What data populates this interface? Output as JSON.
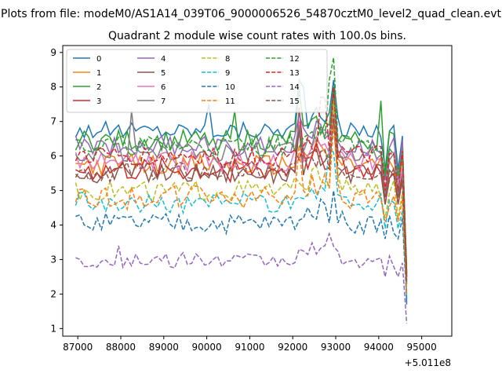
{
  "suptitle": "Plots from file: modeM0/AS1A14_039T06_9000006526_54870cztM0_level2_quad_clean.evt",
  "chart_data": {
    "type": "line",
    "title": "Quadrant 2 module wise count rates with 100.0s bins.",
    "xlabel": "",
    "ylabel": "",
    "offset_label": "+5.011e8",
    "xlim": [
      86650,
      95700
    ],
    "ylim": [
      0.78,
      9.2
    ],
    "xticks": [
      87000,
      88000,
      89000,
      90000,
      91000,
      92000,
      93000,
      94000,
      95000
    ],
    "yticks": [
      1,
      2,
      3,
      4,
      5,
      6,
      7,
      8,
      9
    ],
    "x_start": 86950,
    "x_step": 100,
    "n_points": 78,
    "legend_location": "top-left",
    "series": [
      {
        "name": "0",
        "color": "#1f77b4",
        "style": "solid",
        "base": 6.75,
        "noise": 0.25,
        "dip": 5.6,
        "end": 1.7,
        "spikes": [
          [
            31,
            7.5
          ],
          [
            52,
            8.2
          ],
          [
            53,
            8.0
          ],
          [
            60,
            8.2
          ]
        ]
      },
      {
        "name": "1",
        "color": "#ff7f0e",
        "style": "solid",
        "base": 5.75,
        "noise": 0.3,
        "dip": 5.0,
        "end": 2.8,
        "spikes": [
          [
            52,
            7.0
          ],
          [
            60,
            7.3
          ]
        ]
      },
      {
        "name": "2",
        "color": "#2ca02c",
        "style": "solid",
        "base": 6.45,
        "noise": 0.3,
        "dip": 5.4,
        "end": 2.6,
        "spikes": [
          [
            37,
            7.3
          ],
          [
            52,
            7.9
          ],
          [
            60,
            8.0
          ],
          [
            71,
            7.6
          ]
        ]
      },
      {
        "name": "3",
        "color": "#d62728",
        "style": "solid",
        "base": 5.6,
        "noise": 0.35,
        "dip": 4.6,
        "end": 2.4,
        "spikes": [
          [
            52,
            7.4
          ],
          [
            60,
            7.8
          ]
        ]
      },
      {
        "name": "4",
        "color": "#9467bd",
        "style": "solid",
        "base": 6.3,
        "noise": 0.3,
        "dip": 5.3,
        "end": 2.5,
        "spikes": [
          [
            52,
            7.2
          ],
          [
            60,
            7.7
          ]
        ]
      },
      {
        "name": "5",
        "color": "#8c564b",
        "style": "solid",
        "base": 5.5,
        "noise": 0.3,
        "dip": 4.8,
        "end": 2.3,
        "spikes": [
          [
            52,
            6.8
          ],
          [
            60,
            7.0
          ]
        ]
      },
      {
        "name": "6",
        "color": "#e377c2",
        "style": "solid",
        "base": 5.85,
        "noise": 0.3,
        "dip": 5.0,
        "end": 2.5,
        "spikes": [
          [
            52,
            7.0
          ],
          [
            60,
            7.3
          ]
        ]
      },
      {
        "name": "7",
        "color": "#7f7f7f",
        "style": "solid",
        "base": 6.1,
        "noise": 0.3,
        "dip": 4.9,
        "end": 2.6,
        "spikes": [
          [
            13,
            7.3
          ],
          [
            52,
            6.9
          ],
          [
            60,
            7.6
          ]
        ]
      },
      {
        "name": "8",
        "color": "#bcbd22",
        "style": "dashed",
        "base": 5.0,
        "noise": 0.3,
        "dip": 4.2,
        "end": 2.0,
        "spikes": [
          [
            60,
            7.6
          ]
        ]
      },
      {
        "name": "9",
        "color": "#17becf",
        "style": "dashed",
        "base": 4.65,
        "noise": 0.3,
        "dip": 3.9,
        "end": 1.9,
        "spikes": [
          [
            59,
            6.3
          ],
          [
            60,
            6.1
          ]
        ]
      },
      {
        "name": "10",
        "color": "#1f77b4",
        "style": "dashed",
        "base": 4.05,
        "noise": 0.3,
        "dip": 3.6,
        "end": 1.8,
        "spikes": [
          [
            58,
            4.6
          ],
          [
            60,
            5.0
          ]
        ]
      },
      {
        "name": "11",
        "color": "#ff7f0e",
        "style": "dashed",
        "base": 4.8,
        "noise": 0.35,
        "dip": 4.1,
        "end": 2.0,
        "spikes": [
          [
            52,
            6.3
          ],
          [
            60,
            6.9
          ]
        ]
      },
      {
        "name": "12",
        "color": "#2ca02c",
        "style": "dashed",
        "base": 6.3,
        "noise": 0.3,
        "dip": 5.4,
        "end": 2.6,
        "spikes": [
          [
            59,
            8.2
          ],
          [
            60,
            8.85
          ]
        ]
      },
      {
        "name": "13",
        "color": "#d62728",
        "style": "dashed",
        "base": 6.0,
        "noise": 0.3,
        "dip": 5.0,
        "end": 2.5,
        "spikes": [
          [
            57,
            7.7
          ],
          [
            58,
            7.7
          ],
          [
            60,
            8.0
          ]
        ]
      },
      {
        "name": "14",
        "color": "#9467bd",
        "style": "dashed",
        "base": 2.95,
        "noise": 0.22,
        "dip": 2.5,
        "end": 1.15,
        "spikes": [
          [
            10,
            3.4
          ],
          [
            25,
            3.2
          ],
          [
            59,
            3.75
          ]
        ]
      },
      {
        "name": "15",
        "color": "#8c564b",
        "style": "dashed",
        "base": 5.55,
        "noise": 0.3,
        "dip": 4.6,
        "end": 2.3,
        "spikes": [
          [
            52,
            6.7
          ],
          [
            60,
            7.2
          ]
        ]
      }
    ]
  }
}
